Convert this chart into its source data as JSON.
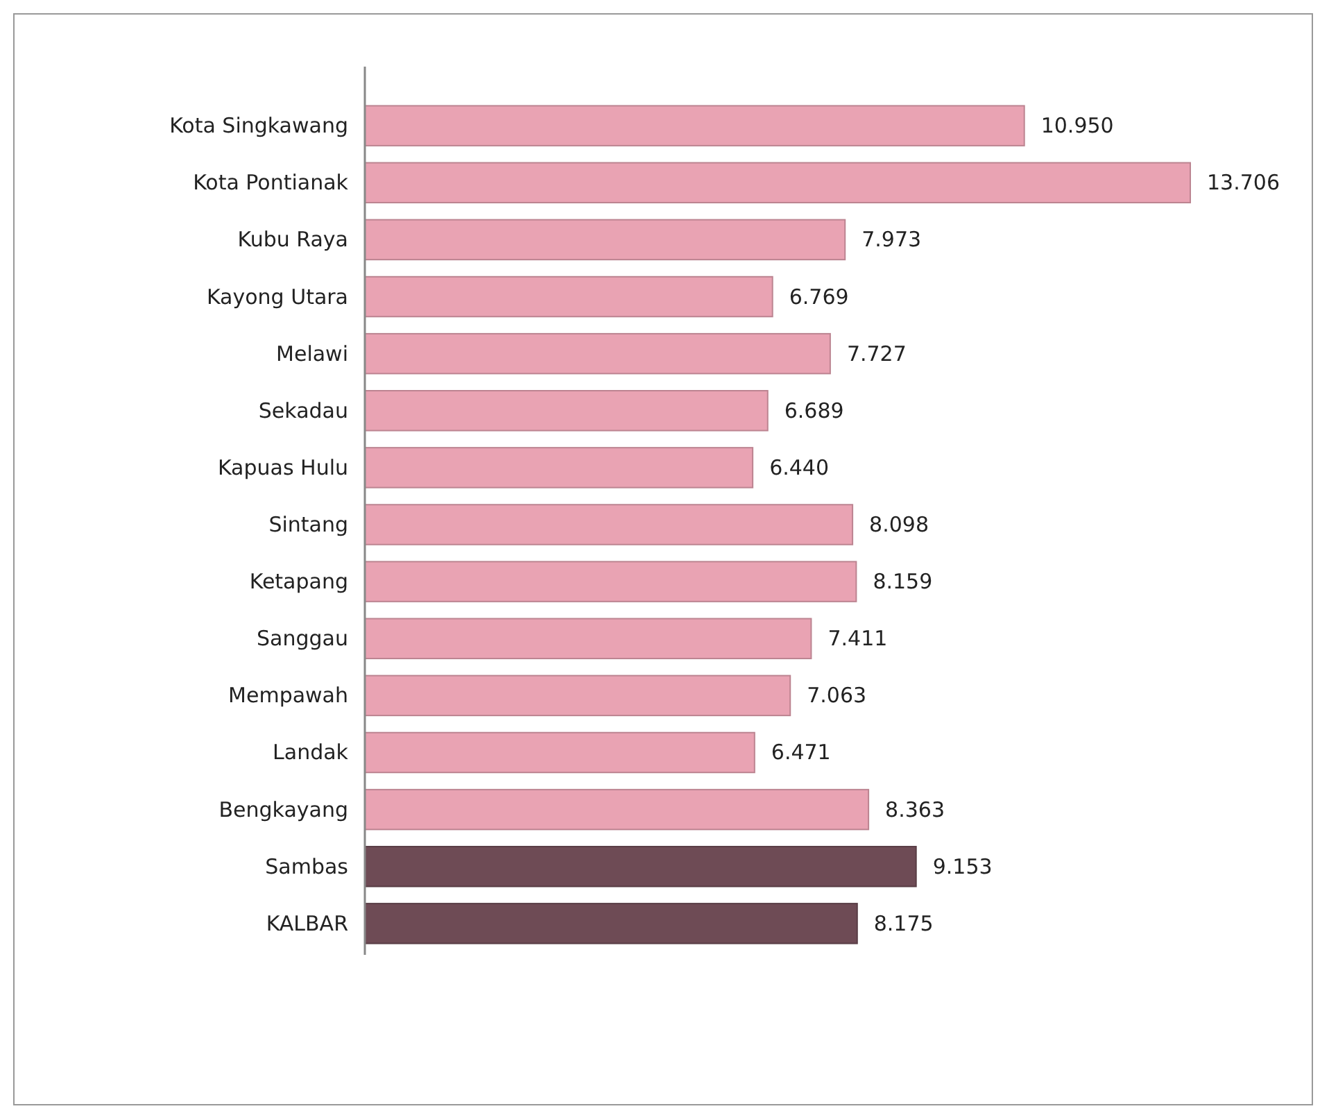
{
  "chart_data": {
    "type": "bar",
    "orientation": "horizontal",
    "categories": [
      "Kota Singkawang",
      "Kota Pontianak",
      "Kubu Raya",
      "Kayong Utara",
      "Melawi",
      "Sekadau",
      "Kapuas Hulu",
      "Sintang",
      "Ketapang",
      "Sanggau",
      "Mempawah",
      "Landak",
      "Bengkayang",
      "Sambas",
      "KALBAR"
    ],
    "values": [
      10950,
      13706,
      7973,
      6769,
      7727,
      6689,
      6440,
      8098,
      8159,
      7411,
      7063,
      6471,
      8363,
      9153,
      8175
    ],
    "value_labels": [
      "10.950",
      "13.706",
      "7.973",
      "6.769",
      "7.727",
      "6.689",
      "6.440",
      "8.098",
      "8.159",
      "7.411",
      "7.063",
      "6.471",
      "8.363",
      "9.153",
      "8.175"
    ],
    "colors": [
      "#e9a3b3",
      "#e9a3b3",
      "#e9a3b3",
      "#e9a3b3",
      "#e9a3b3",
      "#e9a3b3",
      "#e9a3b3",
      "#e9a3b3",
      "#e9a3b3",
      "#e9a3b3",
      "#e9a3b3",
      "#e9a3b3",
      "#e9a3b3",
      "#6e4b55",
      "#6e4b55"
    ],
    "grid": false
  }
}
